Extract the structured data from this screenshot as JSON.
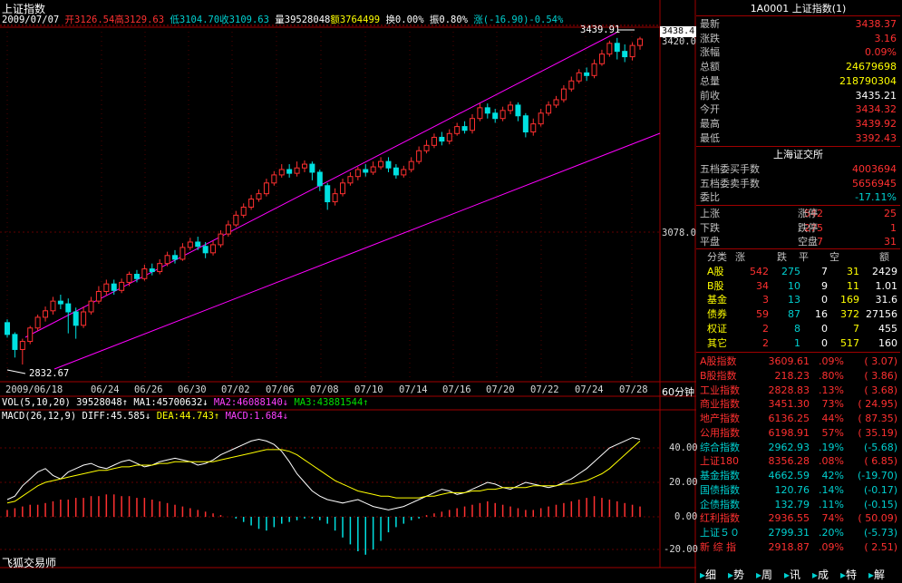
{
  "header": {
    "title": "上证指数",
    "date": "2009/07/07",
    "open": "开3126.54",
    "high": "高3129.63",
    "low": "低3104.70",
    "close": "收3109.63",
    "volume": "量39528048",
    "amount": "额3764499",
    "turnover": "换0.00%",
    "amplitude": "振0.80%",
    "change": "涨(-16.90)-0.54%"
  },
  "main_chart": {
    "peak_label": "3439.91",
    "low_label": "2832.67",
    "current_tag": "3438.4",
    "y_ticks": [
      "3420.0",
      "3078.0"
    ],
    "x_ticks": [
      "2009/06/18",
      "06/24",
      "06/26",
      "06/30",
      "07/02",
      "07/06",
      "07/08",
      "07/10",
      "07/14",
      "07/16",
      "07/20",
      "07/22",
      "07/24",
      "07/28"
    ],
    "period_label": "60分钟"
  },
  "vol_line": {
    "vol": "VOL(5,10,20) 39528048↑",
    "ma1": "MA1:45700632↓",
    "ma2": "MA2:46088140↓",
    "ma3": "MA3:43881544↑"
  },
  "macd_line": {
    "params": "MACD(26,12,9)",
    "diff": "DIFF:45.585↓",
    "dea": "DEA:44.743↑",
    "macd": "MACD:1.684↓"
  },
  "macd_ticks": [
    "40.00",
    "20.00",
    "0.00",
    "-20.00"
  ],
  "watermark": "飞狐交易师",
  "panel": {
    "title": "1A0001 上证指数(1)",
    "quote": [
      {
        "label": "最新",
        "value": "3438.37",
        "cls": "red"
      },
      {
        "label": "涨跌",
        "value": "3.16",
        "cls": "red"
      },
      {
        "label": "涨幅",
        "value": "0.09%",
        "cls": "red"
      },
      {
        "label": "总额",
        "value": "24679698",
        "cls": "yel"
      },
      {
        "label": "总量",
        "value": "218790304",
        "cls": "yel"
      },
      {
        "label": "前收",
        "value": "3435.21",
        "cls": "wht"
      },
      {
        "label": "今开",
        "value": "3434.32",
        "cls": "red"
      },
      {
        "label": "最高",
        "value": "3439.92",
        "cls": "red"
      },
      {
        "label": "最低",
        "value": "3392.43",
        "cls": "red"
      }
    ],
    "exchange_title": "上海证交所",
    "exchange": [
      {
        "label": "五档委买手数",
        "value": "4003694",
        "cls": "red"
      },
      {
        "label": "五档委卖手数",
        "value": "5656945",
        "cls": "red"
      },
      {
        "label": "委比",
        "value": "-17.11%",
        "cls": "cyan"
      }
    ],
    "breadth": [
      {
        "l1": "上涨",
        "v1": "542",
        "l2": "涨停",
        "v2": "25"
      },
      {
        "l1": "下跌",
        "v1": "275",
        "l2": "跌停",
        "v2": "1"
      },
      {
        "l1": "平盘",
        "v1": "7",
        "l2": "空盘",
        "v2": "31"
      }
    ],
    "class_headers": [
      "分类",
      "涨",
      "跌",
      "平",
      "空",
      "额"
    ],
    "classes": [
      {
        "name": "A股",
        "up": "542",
        "down": "275",
        "flat": "7",
        "empty": "31",
        "amt": "2429"
      },
      {
        "name": "B股",
        "up": "34",
        "down": "10",
        "flat": "9",
        "empty": "11",
        "amt": "1.01"
      },
      {
        "name": "基金",
        "up": "3",
        "down": "13",
        "flat": "0",
        "empty": "169",
        "amt": "31.6"
      },
      {
        "name": "债券",
        "up": "59",
        "down": "87",
        "flat": "16",
        "empty": "372",
        "amt": "27156"
      },
      {
        "name": "权证",
        "up": "2",
        "down": "8",
        "flat": "0",
        "empty": "7",
        "amt": "455"
      },
      {
        "name": "其它",
        "up": "2",
        "down": "1",
        "flat": "0",
        "empty": "517",
        "amt": "160"
      }
    ],
    "indices": [
      {
        "name": "A股指数",
        "price": "3609.61",
        "pct": ".09%",
        "chg": "( 3.07)",
        "cls": "red"
      },
      {
        "name": "B股指数",
        "price": "218.23",
        "pct": ".80%",
        "chg": "( 3.86)",
        "cls": "red"
      },
      {
        "name": "工业指数",
        "price": "2828.83",
        "pct": ".13%",
        "chg": "( 3.68)",
        "cls": "red"
      },
      {
        "name": "商业指数",
        "price": "3451.30",
        "pct": "73%",
        "chg": "( 24.95)",
        "cls": "red"
      },
      {
        "name": "地产指数",
        "price": "6136.25",
        "pct": "44%",
        "chg": "( 87.35)",
        "cls": "red"
      },
      {
        "name": "公用指数",
        "price": "6198.91",
        "pct": "57%",
        "chg": "( 35.19)",
        "cls": "red"
      },
      {
        "name": "综合指数",
        "price": "2962.93",
        "pct": ".19%",
        "chg": "(-5.68)",
        "cls": "cyan"
      },
      {
        "name": "上证180",
        "price": "8356.28",
        "pct": ".08%",
        "chg": "( 6.85)",
        "cls": "red"
      },
      {
        "name": "基金指数",
        "price": "4662.59",
        "pct": "42%",
        "chg": "(-19.70)",
        "cls": "cyan"
      },
      {
        "name": "国债指数",
        "price": "120.76",
        "pct": ".14%",
        "chg": "(-0.17)",
        "cls": "cyan"
      },
      {
        "name": "企债指数",
        "price": "132.79",
        "pct": ".11%",
        "chg": "(-0.15)",
        "cls": "cyan"
      },
      {
        "name": "红利指数",
        "price": "2936.55",
        "pct": "74%",
        "chg": "( 50.09)",
        "cls": "red"
      },
      {
        "name": "上证５０",
        "price": "2799.31",
        "pct": ".20%",
        "chg": "(-5.73)",
        "cls": "cyan"
      },
      {
        "name": "新 综 指",
        "price": "2918.87",
        "pct": ".09%",
        "chg": "( 2.51)",
        "cls": "red"
      }
    ]
  },
  "tabs": [
    "细",
    "势",
    "周",
    "讯",
    "成",
    "特",
    "解"
  ],
  "colors": {
    "up": "#ff3030",
    "down": "#00e0e0",
    "channel": "#ff00ff",
    "grid": "#a00000",
    "diff_line": "#ffffff",
    "dea_line": "#ffff00"
  },
  "candles": [
    [
      2910,
      2888,
      2916,
      2882
    ],
    [
      2888,
      2860,
      2892,
      2845
    ],
    [
      2860,
      2875,
      2880,
      2832
    ],
    [
      2875,
      2900,
      2904,
      2870
    ],
    [
      2900,
      2920,
      2925,
      2895
    ],
    [
      2920,
      2932,
      2940,
      2912
    ],
    [
      2932,
      2950,
      2958,
      2925
    ],
    [
      2950,
      2945,
      2962,
      2935
    ],
    [
      2945,
      2930,
      2955,
      2890
    ],
    [
      2930,
      2905,
      2938,
      2880
    ],
    [
      2905,
      2930,
      2940,
      2900
    ],
    [
      2930,
      2950,
      2958,
      2925
    ],
    [
      2950,
      2968,
      2978,
      2945
    ],
    [
      2968,
      2982,
      2990,
      2960
    ],
    [
      2982,
      2970,
      2990,
      2962
    ],
    [
      2970,
      2985,
      2992,
      2965
    ],
    [
      2985,
      3000,
      3005,
      2978
    ],
    [
      3000,
      2992,
      3008,
      2985
    ],
    [
      2992,
      3010,
      3018,
      2988
    ],
    [
      3010,
      3005,
      3020,
      2998
    ],
    [
      3005,
      3020,
      3028,
      3000
    ],
    [
      3020,
      3035,
      3042,
      3015
    ],
    [
      3035,
      3028,
      3045,
      3020
    ],
    [
      3028,
      3050,
      3058,
      3025
    ],
    [
      3050,
      3060,
      3068,
      3045
    ],
    [
      3060,
      3052,
      3070,
      3045
    ],
    [
      3052,
      3040,
      3060,
      3030
    ],
    [
      3040,
      3055,
      3062,
      3035
    ],
    [
      3055,
      3075,
      3082,
      3050
    ],
    [
      3075,
      3092,
      3100,
      3070
    ],
    [
      3092,
      3110,
      3118,
      3088
    ],
    [
      3110,
      3125,
      3132,
      3105
    ],
    [
      3125,
      3140,
      3148,
      3120
    ],
    [
      3140,
      3150,
      3158,
      3135
    ],
    [
      3150,
      3170,
      3178,
      3145
    ],
    [
      3170,
      3185,
      3192,
      3165
    ],
    [
      3185,
      3195,
      3205,
      3180
    ],
    [
      3195,
      3188,
      3205,
      3180
    ],
    [
      3188,
      3198,
      3210,
      3182
    ],
    [
      3198,
      3205,
      3212,
      3190
    ],
    [
      3205,
      3190,
      3210,
      3175
    ],
    [
      3190,
      3165,
      3195,
      3155
    ],
    [
      3165,
      3135,
      3170,
      3120
    ],
    [
      3135,
      3150,
      3160,
      3128
    ],
    [
      3150,
      3170,
      3178,
      3145
    ],
    [
      3170,
      3182,
      3190,
      3165
    ],
    [
      3182,
      3195,
      3200,
      3175
    ],
    [
      3195,
      3190,
      3205,
      3182
    ],
    [
      3190,
      3200,
      3210,
      3185
    ],
    [
      3200,
      3210,
      3218,
      3195
    ],
    [
      3210,
      3198,
      3218,
      3190
    ],
    [
      3198,
      3185,
      3205,
      3178
    ],
    [
      3185,
      3195,
      3202,
      3180
    ],
    [
      3195,
      3210,
      3218,
      3190
    ],
    [
      3210,
      3230,
      3238,
      3205
    ],
    [
      3230,
      3240,
      3250,
      3225
    ],
    [
      3240,
      3255,
      3262,
      3235
    ],
    [
      3255,
      3248,
      3265,
      3240
    ],
    [
      3248,
      3262,
      3270,
      3242
    ],
    [
      3262,
      3275,
      3282,
      3258
    ],
    [
      3275,
      3268,
      3285,
      3262
    ],
    [
      3268,
      3290,
      3298,
      3262
    ],
    [
      3290,
      3310,
      3318,
      3285
    ],
    [
      3310,
      3300,
      3318,
      3290
    ],
    [
      3300,
      3290,
      3308,
      3282
    ],
    [
      3290,
      3305,
      3312,
      3285
    ],
    [
      3305,
      3315,
      3322,
      3298
    ],
    [
      3315,
      3295,
      3320,
      3285
    ],
    [
      3295,
      3265,
      3300,
      3255
    ],
    [
      3265,
      3280,
      3290,
      3258
    ],
    [
      3280,
      3300,
      3308,
      3275
    ],
    [
      3300,
      3315,
      3322,
      3295
    ],
    [
      3315,
      3325,
      3332,
      3310
    ],
    [
      3325,
      3345,
      3352,
      3320
    ],
    [
      3345,
      3360,
      3368,
      3340
    ],
    [
      3360,
      3375,
      3382,
      3355
    ],
    [
      3375,
      3370,
      3385,
      3360
    ],
    [
      3370,
      3392,
      3400,
      3365
    ],
    [
      3392,
      3410,
      3418,
      3388
    ],
    [
      3410,
      3430,
      3435,
      3405
    ],
    [
      3430,
      3415,
      3440,
      3400
    ],
    [
      3415,
      3405,
      3428,
      3395
    ],
    [
      3405,
      3426,
      3432,
      3398
    ],
    [
      3426,
      3438,
      3442,
      3418
    ]
  ],
  "vol_bars": [
    4,
    5,
    6,
    7,
    7,
    8,
    9,
    10,
    10,
    11,
    11,
    12,
    12,
    13,
    13,
    12,
    12,
    11,
    11,
    10,
    9,
    8,
    7,
    6,
    5,
    4,
    3,
    2,
    1,
    0,
    -1,
    -3,
    -5,
    -7,
    -8,
    -6,
    -4,
    -3,
    -2,
    -1,
    -1,
    -2,
    -4,
    -8,
    -12,
    -16,
    -20,
    -22,
    -19,
    -14,
    -9,
    -6,
    -4,
    -2,
    -1,
    1,
    2,
    3,
    4,
    5,
    6,
    7,
    8,
    9,
    8,
    7,
    6,
    5,
    4,
    4,
    5,
    6,
    7,
    8,
    9,
    10,
    11,
    12,
    11,
    10,
    9,
    8,
    7,
    6
  ],
  "diff_vals": [
    10,
    12,
    18,
    22,
    26,
    28,
    24,
    22,
    26,
    28,
    30,
    31,
    29,
    28,
    30,
    32,
    33,
    31,
    29,
    30,
    32,
    33,
    34,
    33,
    32,
    30,
    31,
    33,
    36,
    38,
    40,
    42,
    44,
    45,
    44,
    42,
    38,
    32,
    25,
    20,
    15,
    12,
    10,
    9,
    8,
    9,
    10,
    8,
    6,
    5,
    4,
    5,
    6,
    8,
    10,
    12,
    14,
    16,
    15,
    13,
    14,
    16,
    18,
    20,
    19,
    17,
    16,
    18,
    20,
    19,
    18,
    17,
    18,
    20,
    22,
    25,
    28,
    32,
    36,
    40,
    42,
    44,
    46,
    45
  ],
  "dea_vals": [
    8,
    9,
    12,
    15,
    18,
    20,
    21,
    22,
    23,
    24,
    25,
    26,
    27,
    27,
    28,
    29,
    29,
    30,
    30,
    30,
    31,
    31,
    32,
    32,
    32,
    32,
    32,
    32,
    33,
    34,
    35,
    36,
    37,
    38,
    39,
    39,
    39,
    38,
    36,
    33,
    30,
    27,
    24,
    21,
    19,
    17,
    15,
    14,
    13,
    12,
    12,
    11,
    11,
    11,
    11,
    12,
    12,
    13,
    14,
    14,
    14,
    15,
    15,
    16,
    16,
    17,
    17,
    17,
    17,
    18,
    18,
    18,
    18,
    19,
    19,
    20,
    21,
    23,
    25,
    28,
    32,
    36,
    40,
    44
  ]
}
